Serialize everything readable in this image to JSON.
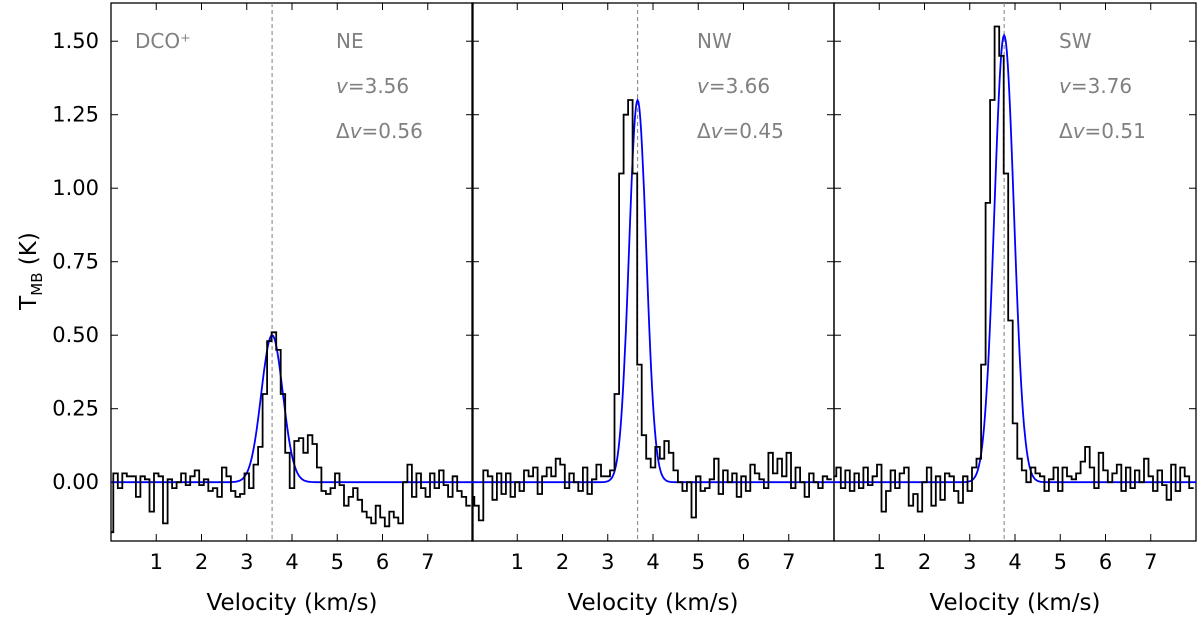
{
  "figure": {
    "ylabel_main": "T",
    "ylabel_sub": "MB",
    "ylabel_unit": " (K)",
    "xlabel": "Velocity (km/s)",
    "molecule_label": "DCO⁺"
  },
  "colors": {
    "observed": "#000000",
    "fit": "#0000ff",
    "annotation": "#808080",
    "center_line": "#808080"
  },
  "chart_data": [
    {
      "type": "line",
      "panel": "NE",
      "annotations": {
        "position": "NE",
        "velocity": "3.56",
        "width": "0.56"
      },
      "xlim": [
        0,
        8
      ],
      "ylim": [
        -0.2,
        1.63
      ],
      "xticks": [
        "1",
        "2",
        "3",
        "4",
        "5",
        "6",
        "7"
      ],
      "yticks": [
        "0.00",
        "0.25",
        "0.50",
        "0.75",
        "1.00",
        "1.25",
        "1.50"
      ],
      "center_velocity": 3.56,
      "fit": {
        "peak": 0.5,
        "center": 3.56,
        "fwhm": 0.56
      },
      "series": [
        {
          "style": "steps",
          "x_start": 0.0,
          "x_step": 0.1,
          "y": [
            -0.17,
            0.03,
            -0.02,
            0.03,
            0.02,
            0.02,
            -0.05,
            0.02,
            0.01,
            -0.1,
            0.03,
            0.02,
            -0.14,
            0.01,
            -0.02,
            0.0,
            0.03,
            -0.01,
            0.02,
            0.04,
            -0.01,
            0.01,
            -0.03,
            -0.02,
            -0.05,
            0.05,
            0.02,
            -0.03,
            -0.05,
            -0.04,
            0.03,
            -0.02,
            0.06,
            0.12,
            0.3,
            0.48,
            0.51,
            0.45,
            0.3,
            0.1,
            -0.02,
            0.14,
            0.15,
            0.1,
            0.16,
            0.13,
            0.05,
            -0.03,
            -0.04,
            -0.02,
            0.03,
            -0.01,
            -0.08,
            -0.05,
            -0.02,
            -0.06,
            -0.1,
            -0.12,
            -0.14,
            -0.08,
            -0.12,
            -0.15,
            -0.1,
            -0.12,
            -0.14,
            0.0,
            0.06,
            -0.05,
            0.03,
            -0.02,
            -0.05,
            0.03,
            -0.02,
            0.04,
            -0.01,
            -0.05,
            0.02,
            -0.03,
            -0.05,
            -0.08
          ]
        },
        {
          "style": "line",
          "label": "fit"
        }
      ]
    },
    {
      "type": "line",
      "panel": "NW",
      "annotations": {
        "position": "NW",
        "velocity": "3.66",
        "width": "0.45"
      },
      "xlim": [
        0,
        8
      ],
      "ylim": [
        -0.2,
        1.63
      ],
      "xticks": [
        "1",
        "2",
        "3",
        "4",
        "5",
        "6",
        "7"
      ],
      "center_velocity": 3.66,
      "fit": {
        "peak": 1.3,
        "center": 3.66,
        "fwhm": 0.45
      },
      "series": [
        {
          "style": "steps",
          "x_start": 0.0,
          "x_step": 0.1,
          "y": [
            -0.05,
            -0.08,
            -0.13,
            0.04,
            0.02,
            -0.06,
            0.03,
            -0.04,
            0.03,
            -0.05,
            0.0,
            -0.03,
            0.04,
            0.02,
            0.05,
            -0.04,
            0.02,
            0.05,
            0.02,
            0.08,
            0.06,
            -0.02,
            0.03,
            0.0,
            -0.03,
            0.05,
            -0.04,
            0.01,
            0.06,
            0.02,
            0.02,
            0.04,
            0.3,
            1.05,
            1.25,
            1.3,
            1.05,
            0.4,
            0.16,
            0.08,
            0.05,
            0.12,
            0.08,
            0.14,
            0.1,
            0.04,
            0.0,
            -0.03,
            0.0,
            -0.12,
            0.02,
            -0.03,
            -0.02,
            0.01,
            0.08,
            -0.04,
            0.04,
            0.0,
            0.03,
            -0.05,
            0.02,
            -0.03,
            0.06,
            0.03,
            0.01,
            -0.02,
            0.1,
            0.03,
            0.08,
            0.02,
            0.1,
            -0.02,
            0.05,
            0.0,
            -0.05,
            0.03,
            0.0,
            -0.02,
            0.02,
            0.01
          ]
        },
        {
          "style": "line",
          "label": "fit"
        }
      ]
    },
    {
      "type": "line",
      "panel": "SW",
      "annotations": {
        "position": "SW",
        "velocity": "3.76",
        "width": "0.51"
      },
      "xlim": [
        0,
        8
      ],
      "ylim": [
        -0.2,
        1.63
      ],
      "xticks": [
        "1",
        "2",
        "3",
        "4",
        "5",
        "6",
        "7"
      ],
      "center_velocity": 3.76,
      "fit": {
        "peak": 1.52,
        "center": 3.76,
        "fwhm": 0.51
      },
      "series": [
        {
          "style": "steps",
          "x_start": 0.0,
          "x_step": 0.1,
          "y": [
            0.02,
            0.05,
            -0.02,
            0.04,
            -0.03,
            0.03,
            -0.02,
            0.05,
            -0.01,
            0.02,
            0.06,
            -0.1,
            -0.03,
            0.04,
            -0.02,
            0.03,
            0.05,
            -0.08,
            -0.04,
            -0.1,
            0.0,
            0.05,
            -0.08,
            0.02,
            -0.06,
            0.03,
            0.02,
            -0.03,
            -0.07,
            0.02,
            -0.03,
            0.05,
            0.08,
            0.4,
            0.95,
            1.3,
            1.55,
            1.45,
            1.05,
            0.55,
            0.2,
            0.08,
            0.04,
            0.0,
            0.05,
            0.03,
            0.02,
            -0.03,
            0.01,
            0.05,
            -0.03,
            0.05,
            0.02,
            0.01,
            0.03,
            0.07,
            0.12,
            0.05,
            -0.02,
            0.1,
            0.04,
            0.0,
            0.03,
            0.06,
            -0.03,
            0.05,
            -0.02,
            0.04,
            0.0,
            0.08,
            0.02,
            -0.03,
            0.04,
            -0.01,
            -0.06,
            0.06,
            -0.03,
            0.05,
            0.02,
            -0.02
          ]
        },
        {
          "style": "line",
          "label": "fit"
        }
      ]
    }
  ]
}
